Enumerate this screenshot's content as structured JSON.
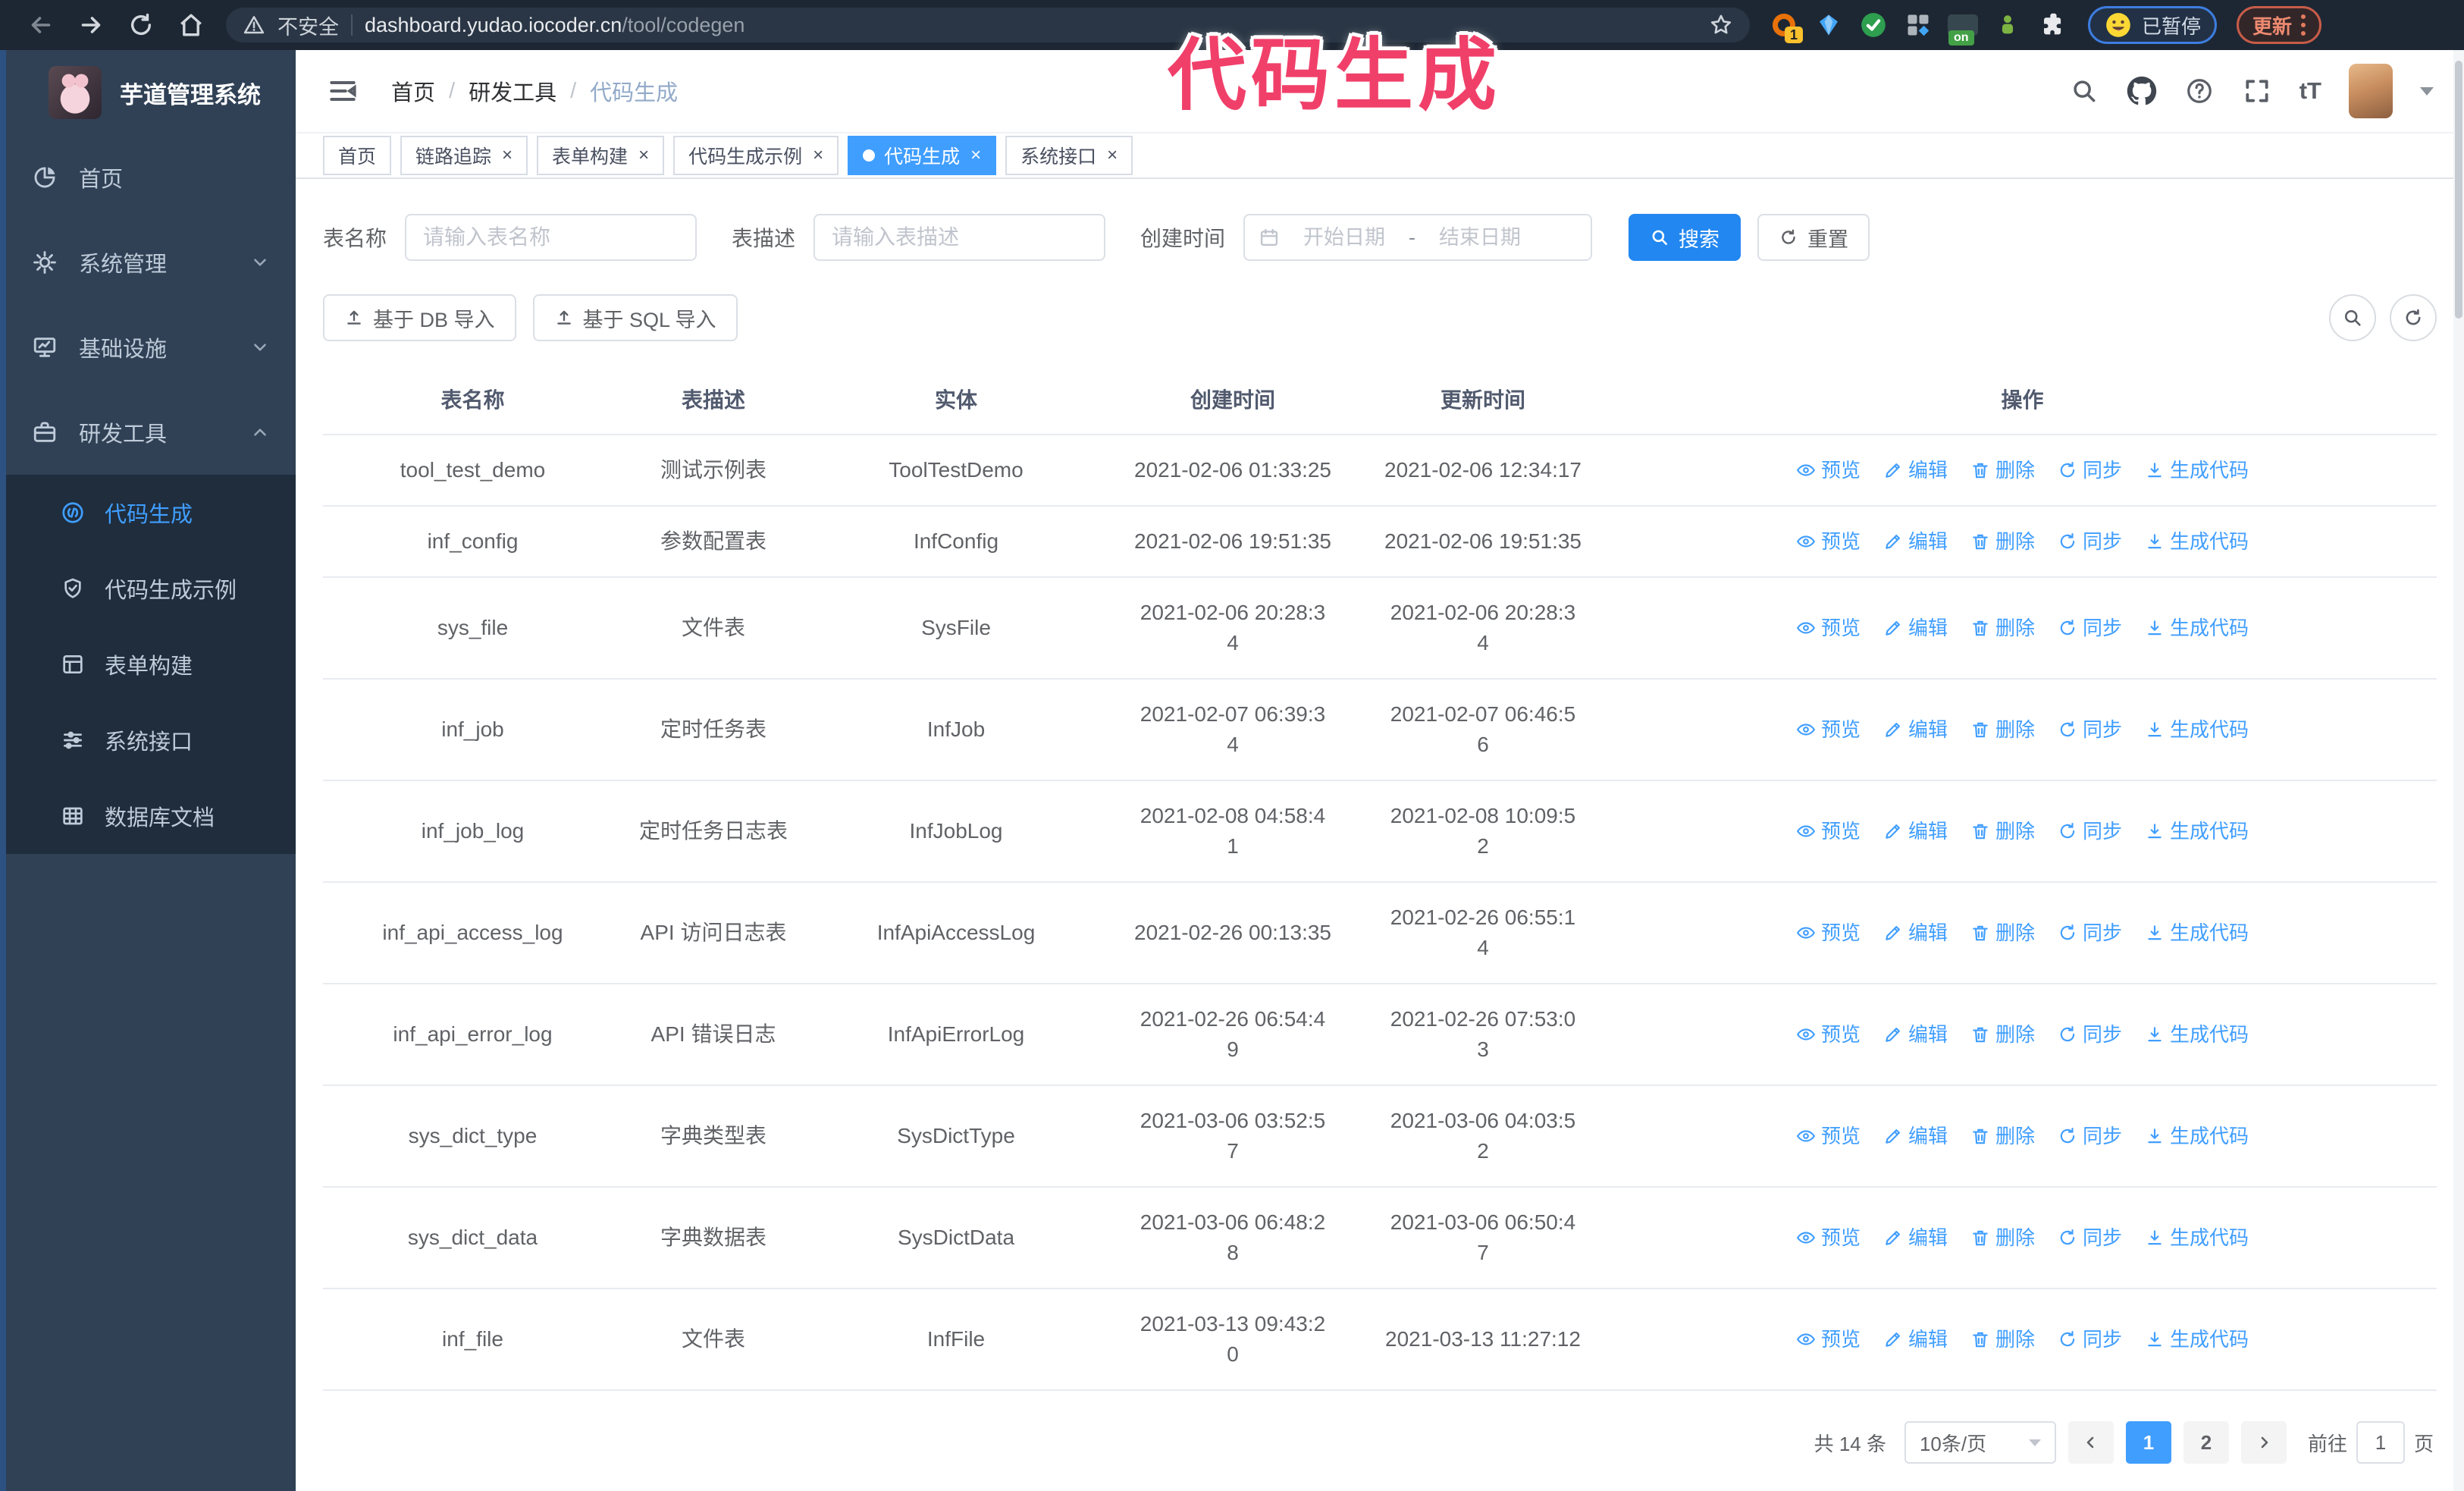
{
  "colors": {
    "accent": "#409eff",
    "primary_button": "#2287f0",
    "annotation_pink": "#f0406a",
    "sidebar_bg": "#304156",
    "submenu_bg": "#1f2d3d",
    "active_tag_bg": "#409eff"
  },
  "overlay": {
    "annotation": "代码生成"
  },
  "browser": {
    "security_label": "不安全",
    "url_host": "dashboard.yudao.iocoder.cn",
    "url_path": "/tool/codegen",
    "extension_badge": "1",
    "extension_on_label": "on",
    "paused_label": "已暂停",
    "update_label": "更新"
  },
  "sidebar": {
    "title": "芋道管理系统",
    "items": [
      {
        "label": "首页"
      },
      {
        "label": "系统管理"
      },
      {
        "label": "基础设施"
      },
      {
        "label": "研发工具"
      }
    ],
    "submenu": [
      {
        "label": "代码生成",
        "active": true
      },
      {
        "label": "代码生成示例",
        "active": false
      },
      {
        "label": "表单构建",
        "active": false
      },
      {
        "label": "系统接口",
        "active": false
      },
      {
        "label": "数据库文档",
        "active": false
      }
    ]
  },
  "header": {
    "breadcrumb": [
      "首页",
      "研发工具",
      "代码生成"
    ],
    "breadcrumb_separator": "/"
  },
  "tabs": [
    {
      "label": "首页",
      "closable": false,
      "active": false
    },
    {
      "label": "链路追踪",
      "closable": true,
      "active": false
    },
    {
      "label": "表单构建",
      "closable": true,
      "active": false
    },
    {
      "label": "代码生成示例",
      "closable": true,
      "active": false
    },
    {
      "label": "代码生成",
      "closable": true,
      "active": true
    },
    {
      "label": "系统接口",
      "closable": true,
      "active": false
    }
  ],
  "filters": {
    "table_name_label": "表名称",
    "table_name_placeholder": "请输入表名称",
    "table_desc_label": "表描述",
    "table_desc_placeholder": "请输入表描述",
    "create_time_label": "创建时间",
    "start_placeholder": "开始日期",
    "range_separator": "-",
    "end_placeholder": "结束日期",
    "search_label": "搜索",
    "reset_label": "重置"
  },
  "toolbar": {
    "import_db_label": "基于 DB 导入",
    "import_sql_label": "基于 SQL 导入"
  },
  "table": {
    "columns": [
      "表名称",
      "表描述",
      "实体",
      "创建时间",
      "更新时间",
      "操作"
    ],
    "actions": [
      "预览",
      "编辑",
      "删除",
      "同步",
      "生成代码"
    ],
    "rows": [
      {
        "name": "tool_test_demo",
        "desc": "测试示例表",
        "entity": "ToolTestDemo",
        "created": "2021-02-06 01:33:25",
        "updated": "2021-02-06 12:34:17"
      },
      {
        "name": "inf_config",
        "desc": "参数配置表",
        "entity": "InfConfig",
        "created": "2021-02-06 19:51:35",
        "updated": "2021-02-06 19:51:35"
      },
      {
        "name": "sys_file",
        "desc": "文件表",
        "entity": "SysFile",
        "created": "2021-02-06 20:28:3\n4",
        "updated": "2021-02-06 20:28:3\n4"
      },
      {
        "name": "inf_job",
        "desc": "定时任务表",
        "entity": "InfJob",
        "created": "2021-02-07 06:39:3\n4",
        "updated": "2021-02-07 06:46:5\n6"
      },
      {
        "name": "inf_job_log",
        "desc": "定时任务日志表",
        "entity": "InfJobLog",
        "created": "2021-02-08 04:58:4\n1",
        "updated": "2021-02-08 10:09:5\n2"
      },
      {
        "name": "inf_api_access_log",
        "desc": "API 访问日志表",
        "entity": "InfApiAccessLog",
        "created": "2021-02-26 00:13:35",
        "updated": "2021-02-26 06:55:1\n4"
      },
      {
        "name": "inf_api_error_log",
        "desc": "API 错误日志",
        "entity": "InfApiErrorLog",
        "created": "2021-02-26 06:54:4\n9",
        "updated": "2021-02-26 07:53:0\n3"
      },
      {
        "name": "sys_dict_type",
        "desc": "字典类型表",
        "entity": "SysDictType",
        "created": "2021-03-06 03:52:5\n7",
        "updated": "2021-03-06 04:03:5\n2"
      },
      {
        "name": "sys_dict_data",
        "desc": "字典数据表",
        "entity": "SysDictData",
        "created": "2021-03-06 06:48:2\n8",
        "updated": "2021-03-06 06:50:4\n7"
      },
      {
        "name": "inf_file",
        "desc": "文件表",
        "entity": "InfFile",
        "created": "2021-03-13 09:43:2\n0",
        "updated": "2021-03-13 11:27:12"
      }
    ]
  },
  "pagination": {
    "total": "共 14 条",
    "page_size": "10条/页",
    "pages": [
      "1",
      "2"
    ],
    "active_page": "1",
    "goto_label": "前往",
    "goto_value": "1",
    "page_unit": "页"
  }
}
